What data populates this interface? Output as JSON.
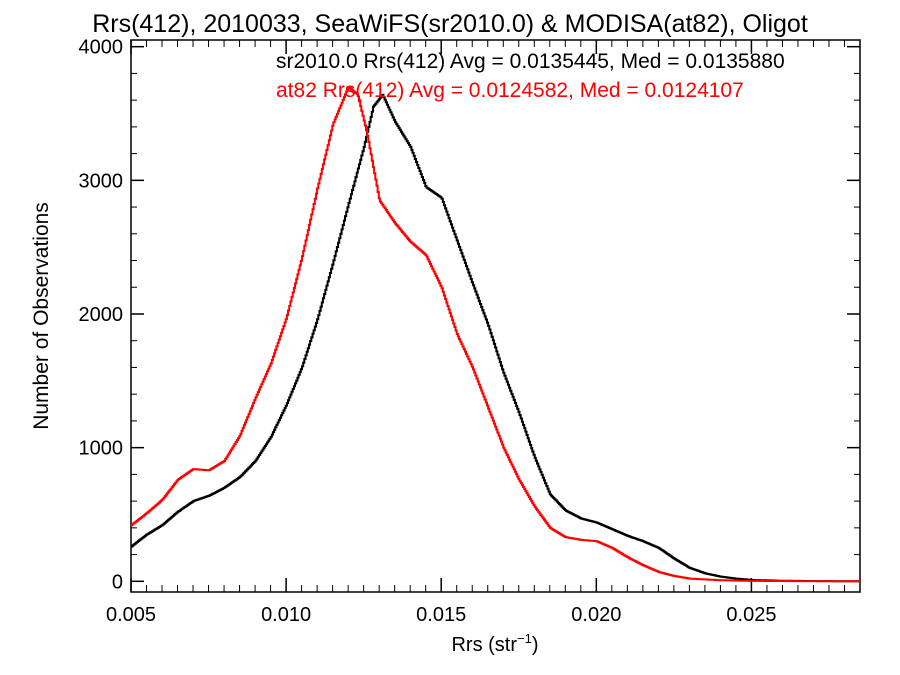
{
  "chart_data": {
    "type": "line",
    "title": "Rrs(412), 2010033, SeaWiFS(sr2010.0) & MODISA(at82), Oligot",
    "xlabel": "Rrs (str",
    "xlabel_sup": "−1",
    "xlabel_close": ")",
    "ylabel": "Number of Observations",
    "xlim": [
      0.005,
      0.0285
    ],
    "ylim": [
      -80,
      4050
    ],
    "xticks": [
      0.005,
      0.01,
      0.015,
      0.02,
      0.025
    ],
    "xtick_labels": [
      "0.005",
      "0.010",
      "0.015",
      "0.020",
      "0.025"
    ],
    "yticks": [
      0,
      1000,
      2000,
      3000,
      4000
    ],
    "ytick_labels": [
      "0",
      "1000",
      "2000",
      "3000",
      "4000"
    ],
    "grid": false,
    "legend_placement": "top-right",
    "annotations": [
      {
        "text": "sr2010.0 Rrs(412) Avg = 0.0135445, Med = 0.0135880",
        "color": "#000000"
      },
      {
        "text": "at82 Rrs(412) Avg = 0.0124582, Med = 0.0124107",
        "color": "#ff0000"
      }
    ],
    "series": [
      {
        "color": "#000000",
        "points": [
          [
            0.005,
            260
          ],
          [
            0.0055,
            350
          ],
          [
            0.006,
            420
          ],
          [
            0.0065,
            520
          ],
          [
            0.007,
            600
          ],
          [
            0.0075,
            640
          ],
          [
            0.008,
            700
          ],
          [
            0.0085,
            780
          ],
          [
            0.009,
            900
          ],
          [
            0.0095,
            1080
          ],
          [
            0.01,
            1320
          ],
          [
            0.0105,
            1600
          ],
          [
            0.011,
            1960
          ],
          [
            0.0115,
            2380
          ],
          [
            0.012,
            2820
          ],
          [
            0.0125,
            3250
          ],
          [
            0.0128,
            3550
          ],
          [
            0.0131,
            3640
          ],
          [
            0.0135,
            3440
          ],
          [
            0.014,
            3250
          ],
          [
            0.0145,
            2950
          ],
          [
            0.015,
            2870
          ],
          [
            0.0155,
            2550
          ],
          [
            0.016,
            2230
          ],
          [
            0.0165,
            1920
          ],
          [
            0.017,
            1560
          ],
          [
            0.0175,
            1260
          ],
          [
            0.018,
            930
          ],
          [
            0.0185,
            650
          ],
          [
            0.019,
            530
          ],
          [
            0.0195,
            470
          ],
          [
            0.02,
            440
          ],
          [
            0.0205,
            390
          ],
          [
            0.021,
            340
          ],
          [
            0.0215,
            300
          ],
          [
            0.022,
            250
          ],
          [
            0.0225,
            170
          ],
          [
            0.023,
            100
          ],
          [
            0.0235,
            60
          ],
          [
            0.024,
            35
          ],
          [
            0.0245,
            20
          ],
          [
            0.025,
            10
          ],
          [
            0.026,
            4
          ],
          [
            0.027,
            2
          ],
          [
            0.0285,
            0
          ]
        ]
      },
      {
        "color": "#ff0000",
        "points": [
          [
            0.005,
            420
          ],
          [
            0.0055,
            510
          ],
          [
            0.006,
            610
          ],
          [
            0.0065,
            760
          ],
          [
            0.007,
            840
          ],
          [
            0.0075,
            830
          ],
          [
            0.008,
            900
          ],
          [
            0.0085,
            1090
          ],
          [
            0.009,
            1370
          ],
          [
            0.0095,
            1630
          ],
          [
            0.01,
            1970
          ],
          [
            0.0105,
            2420
          ],
          [
            0.011,
            2940
          ],
          [
            0.0115,
            3420
          ],
          [
            0.012,
            3700
          ],
          [
            0.0123,
            3640
          ],
          [
            0.0126,
            3350
          ],
          [
            0.013,
            2850
          ],
          [
            0.0135,
            2680
          ],
          [
            0.014,
            2540
          ],
          [
            0.0145,
            2440
          ],
          [
            0.015,
            2200
          ],
          [
            0.0155,
            1850
          ],
          [
            0.016,
            1600
          ],
          [
            0.0165,
            1300
          ],
          [
            0.017,
            1000
          ],
          [
            0.0175,
            760
          ],
          [
            0.018,
            560
          ],
          [
            0.0185,
            400
          ],
          [
            0.019,
            330
          ],
          [
            0.0195,
            310
          ],
          [
            0.02,
            300
          ],
          [
            0.0205,
            250
          ],
          [
            0.021,
            180
          ],
          [
            0.0215,
            120
          ],
          [
            0.022,
            70
          ],
          [
            0.0225,
            40
          ],
          [
            0.023,
            20
          ],
          [
            0.024,
            8
          ],
          [
            0.025,
            3
          ],
          [
            0.0285,
            0
          ]
        ]
      }
    ]
  }
}
